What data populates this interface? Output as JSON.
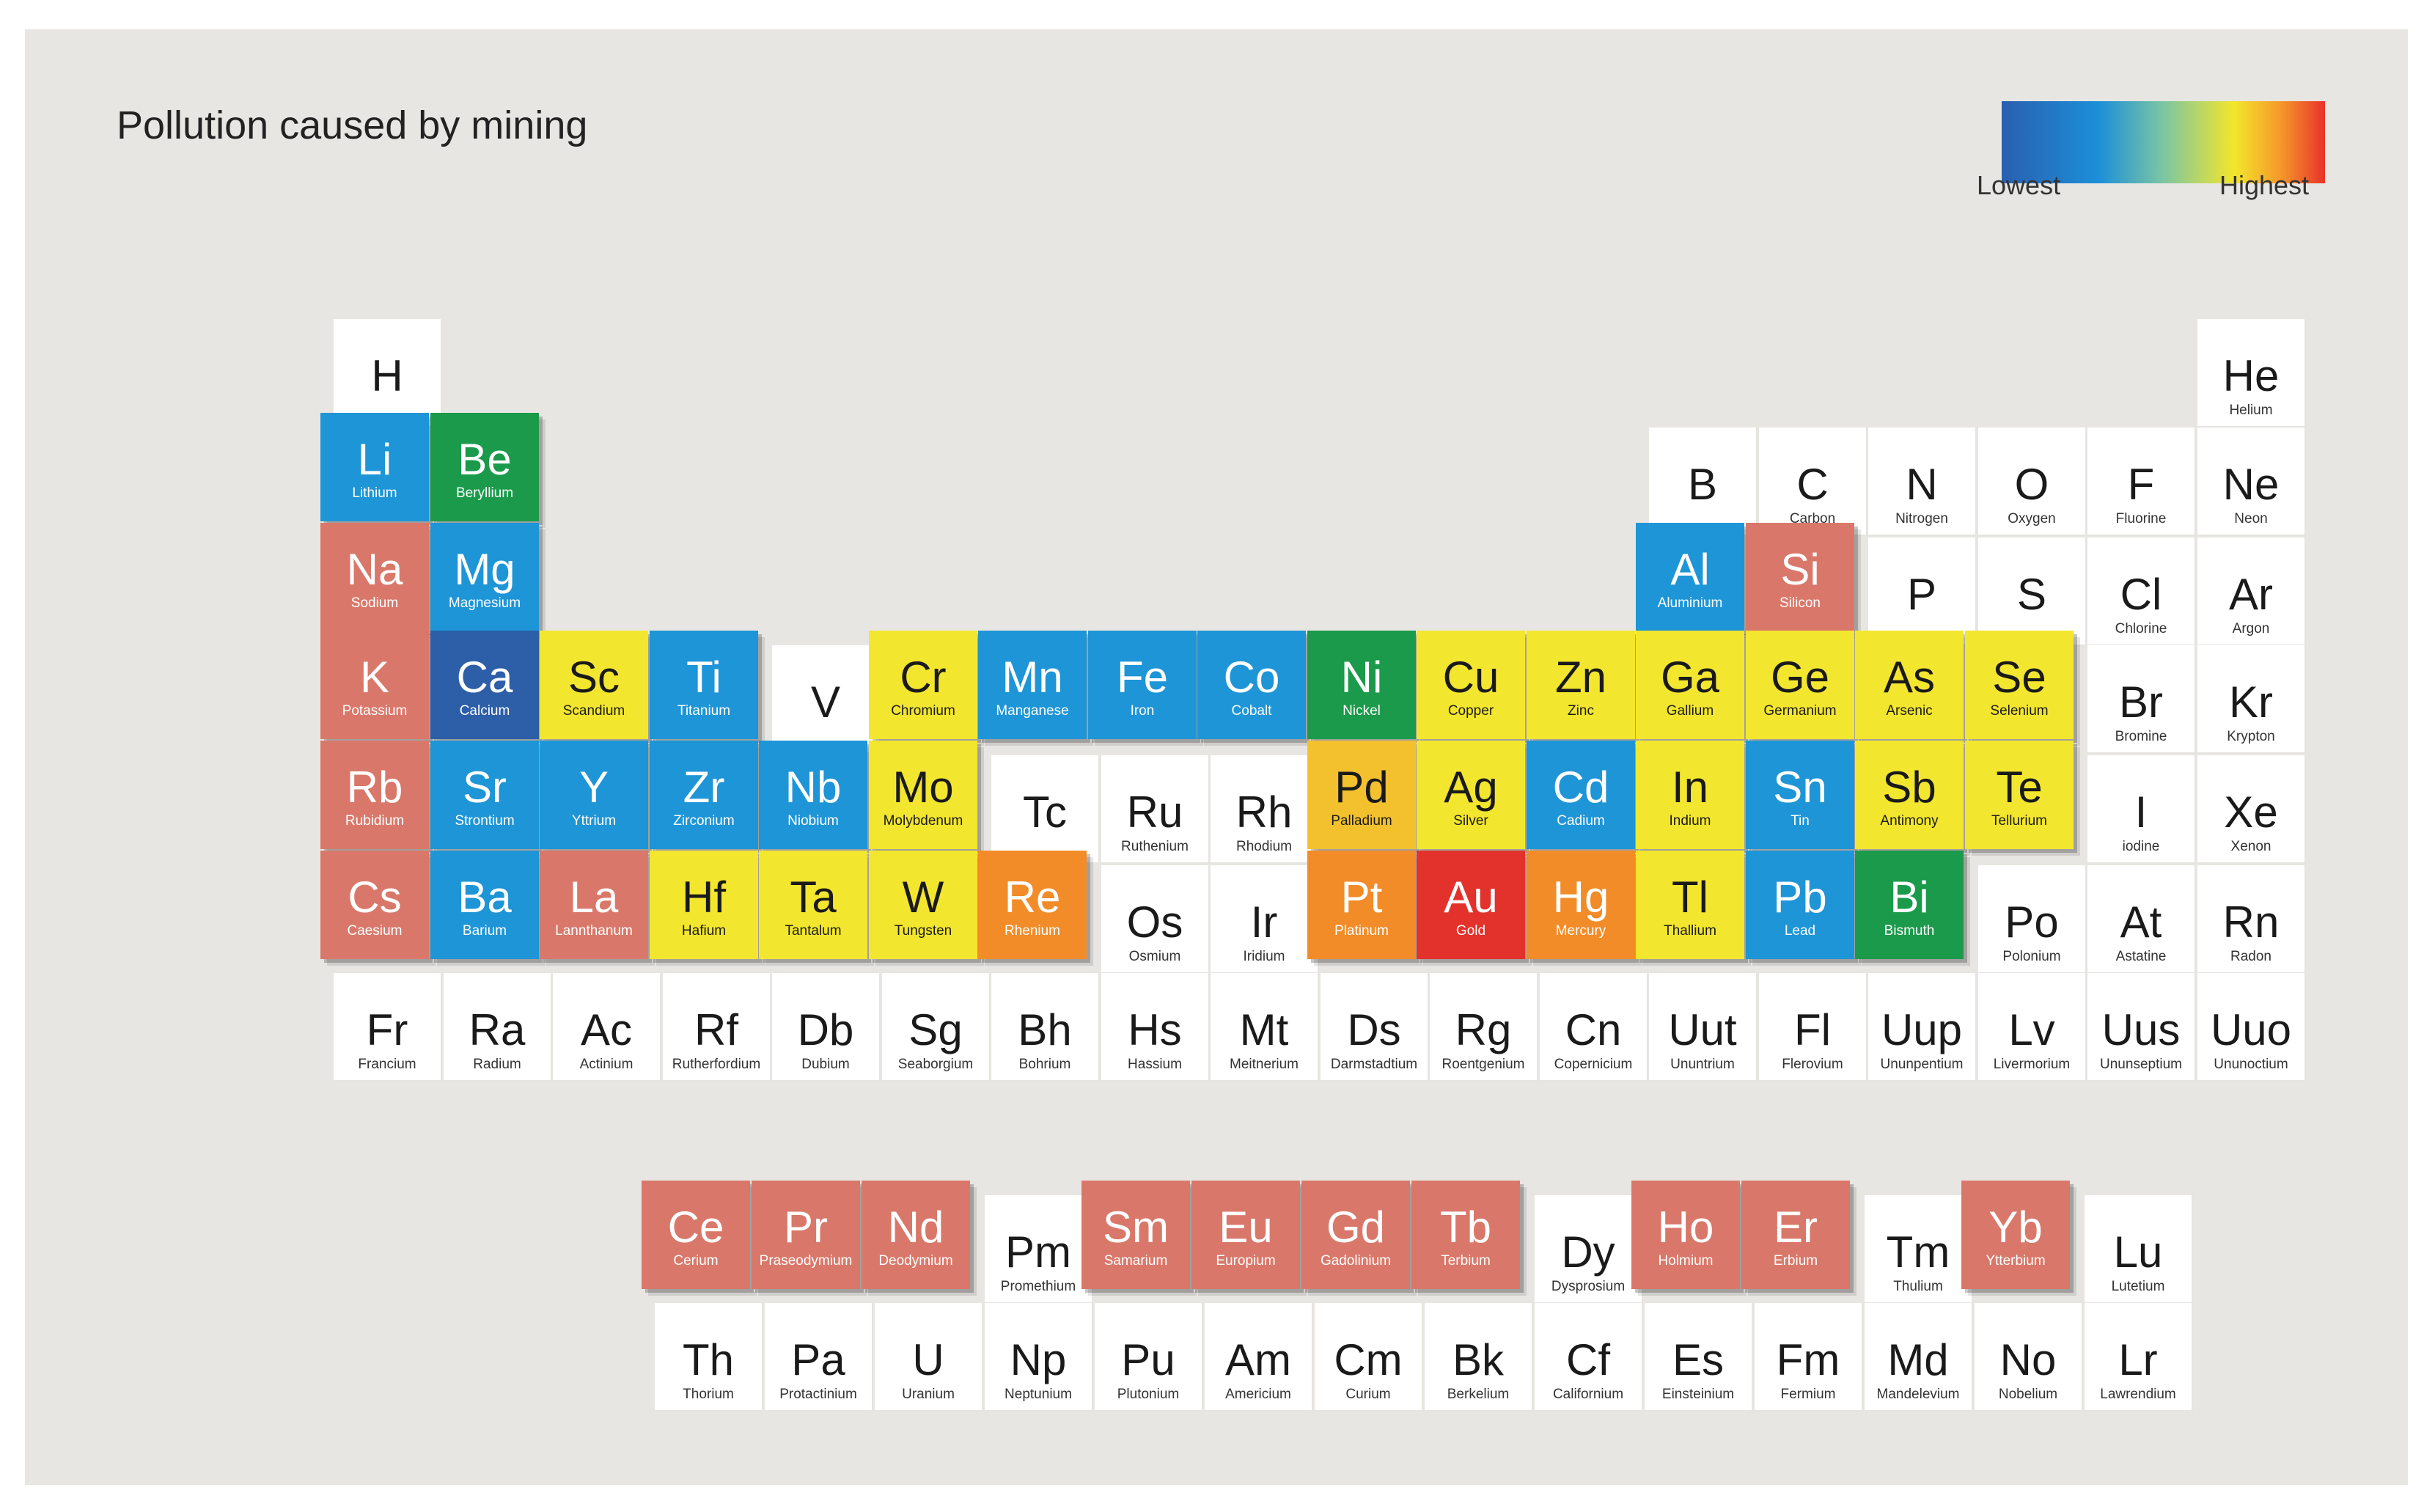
{
  "title": "Pollution caused by mining",
  "legend": {
    "low": "Lowest",
    "high": "Highest"
  },
  "colors": {
    "white": "#ffffff",
    "salmon": "#d9786a",
    "blue": "#1e95d6",
    "darkblue": "#2d5ea8",
    "green": "#1a9a4a",
    "yellow": "#f3e62e",
    "gold": "#f3c12e",
    "orange": "#f28c28",
    "red": "#e3312b"
  },
  "elements": [
    {
      "s": "H",
      "n": "",
      "r": 1,
      "c": 1,
      "p": "white"
    },
    {
      "s": "He",
      "n": "Helium",
      "r": 1,
      "c": 18,
      "p": "white"
    },
    {
      "s": "Li",
      "n": "Lithium",
      "r": 2,
      "c": 1,
      "p": "blue"
    },
    {
      "s": "Be",
      "n": "Beryllium",
      "r": 2,
      "c": 2,
      "p": "green"
    },
    {
      "s": "B",
      "n": "",
      "r": 2,
      "c": 13,
      "p": "white"
    },
    {
      "s": "C",
      "n": "Carbon",
      "r": 2,
      "c": 14,
      "p": "white"
    },
    {
      "s": "N",
      "n": "Nitrogen",
      "r": 2,
      "c": 15,
      "p": "white"
    },
    {
      "s": "O",
      "n": "Oxygen",
      "r": 2,
      "c": 16,
      "p": "white"
    },
    {
      "s": "F",
      "n": "Fluorine",
      "r": 2,
      "c": 17,
      "p": "white"
    },
    {
      "s": "Ne",
      "n": "Neon",
      "r": 2,
      "c": 18,
      "p": "white"
    },
    {
      "s": "Na",
      "n": "Sodium",
      "r": 3,
      "c": 1,
      "p": "salmon"
    },
    {
      "s": "Mg",
      "n": "Magnesium",
      "r": 3,
      "c": 2,
      "p": "blue"
    },
    {
      "s": "Al",
      "n": "Aluminium",
      "r": 3,
      "c": 13,
      "p": "blue"
    },
    {
      "s": "Si",
      "n": "Silicon",
      "r": 3,
      "c": 14,
      "p": "salmon"
    },
    {
      "s": "P",
      "n": "",
      "r": 3,
      "c": 15,
      "p": "white"
    },
    {
      "s": "S",
      "n": "",
      "r": 3,
      "c": 16,
      "p": "white"
    },
    {
      "s": "Cl",
      "n": "Chlorine",
      "r": 3,
      "c": 17,
      "p": "white"
    },
    {
      "s": "Ar",
      "n": "Argon",
      "r": 3,
      "c": 18,
      "p": "white"
    },
    {
      "s": "K",
      "n": "Potassium",
      "r": 4,
      "c": 1,
      "p": "salmon"
    },
    {
      "s": "Ca",
      "n": "Calcium",
      "r": 4,
      "c": 2,
      "p": "darkblue"
    },
    {
      "s": "Sc",
      "n": "Scandium",
      "r": 4,
      "c": 3,
      "p": "yellow"
    },
    {
      "s": "Ti",
      "n": "Titanium",
      "r": 4,
      "c": 4,
      "p": "blue"
    },
    {
      "s": "V",
      "n": "",
      "r": 4,
      "c": 5,
      "p": "white"
    },
    {
      "s": "Cr",
      "n": "Chromium",
      "r": 4,
      "c": 6,
      "p": "yellow"
    },
    {
      "s": "Mn",
      "n": "Manganese",
      "r": 4,
      "c": 7,
      "p": "blue"
    },
    {
      "s": "Fe",
      "n": "Iron",
      "r": 4,
      "c": 8,
      "p": "blue"
    },
    {
      "s": "Co",
      "n": "Cobalt",
      "r": 4,
      "c": 9,
      "p": "blue"
    },
    {
      "s": "Ni",
      "n": "Nickel",
      "r": 4,
      "c": 10,
      "p": "green"
    },
    {
      "s": "Cu",
      "n": "Copper",
      "r": 4,
      "c": 11,
      "p": "yellow"
    },
    {
      "s": "Zn",
      "n": "Zinc",
      "r": 4,
      "c": 12,
      "p": "yellow"
    },
    {
      "s": "Ga",
      "n": "Gallium",
      "r": 4,
      "c": 13,
      "p": "yellow"
    },
    {
      "s": "Ge",
      "n": "Germanium",
      "r": 4,
      "c": 14,
      "p": "yellow"
    },
    {
      "s": "As",
      "n": "Arsenic",
      "r": 4,
      "c": 15,
      "p": "yellow"
    },
    {
      "s": "Se",
      "n": "Selenium",
      "r": 4,
      "c": 16,
      "p": "yellow"
    },
    {
      "s": "Br",
      "n": "Bromine",
      "r": 4,
      "c": 17,
      "p": "white"
    },
    {
      "s": "Kr",
      "n": "Krypton",
      "r": 4,
      "c": 18,
      "p": "white"
    },
    {
      "s": "Rb",
      "n": "Rubidium",
      "r": 5,
      "c": 1,
      "p": "salmon"
    },
    {
      "s": "Sr",
      "n": "Strontium",
      "r": 5,
      "c": 2,
      "p": "blue"
    },
    {
      "s": "Y",
      "n": "Yttrium",
      "r": 5,
      "c": 3,
      "p": "blue"
    },
    {
      "s": "Zr",
      "n": "Zirconium",
      "r": 5,
      "c": 4,
      "p": "blue"
    },
    {
      "s": "Nb",
      "n": "Niobium",
      "r": 5,
      "c": 5,
      "p": "blue"
    },
    {
      "s": "Mo",
      "n": "Molybdenum",
      "r": 5,
      "c": 6,
      "p": "yellow"
    },
    {
      "s": "Tc",
      "n": "",
      "r": 5,
      "c": 7,
      "p": "white"
    },
    {
      "s": "Ru",
      "n": "Ruthenium",
      "r": 5,
      "c": 8,
      "p": "white"
    },
    {
      "s": "Rh",
      "n": "Rhodium",
      "r": 5,
      "c": 9,
      "p": "white"
    },
    {
      "s": "Pd",
      "n": "Palladium",
      "r": 5,
      "c": 10,
      "p": "gold"
    },
    {
      "s": "Ag",
      "n": "Silver",
      "r": 5,
      "c": 11,
      "p": "yellow"
    },
    {
      "s": "Cd",
      "n": "Cadium",
      "r": 5,
      "c": 12,
      "p": "blue"
    },
    {
      "s": "In",
      "n": "Indium",
      "r": 5,
      "c": 13,
      "p": "yellow"
    },
    {
      "s": "Sn",
      "n": "Tin",
      "r": 5,
      "c": 14,
      "p": "blue"
    },
    {
      "s": "Sb",
      "n": "Antimony",
      "r": 5,
      "c": 15,
      "p": "yellow"
    },
    {
      "s": "Te",
      "n": "Tellurium",
      "r": 5,
      "c": 16,
      "p": "yellow"
    },
    {
      "s": "I",
      "n": "iodine",
      "r": 5,
      "c": 17,
      "p": "white"
    },
    {
      "s": "Xe",
      "n": "Xenon",
      "r": 5,
      "c": 18,
      "p": "white"
    },
    {
      "s": "Cs",
      "n": "Caesium",
      "r": 6,
      "c": 1,
      "p": "salmon"
    },
    {
      "s": "Ba",
      "n": "Barium",
      "r": 6,
      "c": 2,
      "p": "blue"
    },
    {
      "s": "La",
      "n": "Lannthanum",
      "r": 6,
      "c": 3,
      "p": "salmon"
    },
    {
      "s": "Hf",
      "n": "Hafium",
      "r": 6,
      "c": 4,
      "p": "yellow"
    },
    {
      "s": "Ta",
      "n": "Tantalum",
      "r": 6,
      "c": 5,
      "p": "yellow"
    },
    {
      "s": "W",
      "n": "Tungsten",
      "r": 6,
      "c": 6,
      "p": "yellow"
    },
    {
      "s": "Re",
      "n": "Rhenium",
      "r": 6,
      "c": 7,
      "p": "orange"
    },
    {
      "s": "Os",
      "n": "Osmium",
      "r": 6,
      "c": 8,
      "p": "white"
    },
    {
      "s": "Ir",
      "n": "Iridium",
      "r": 6,
      "c": 9,
      "p": "white"
    },
    {
      "s": "Pt",
      "n": "Platinum",
      "r": 6,
      "c": 10,
      "p": "orange"
    },
    {
      "s": "Au",
      "n": "Gold",
      "r": 6,
      "c": 11,
      "p": "red"
    },
    {
      "s": "Hg",
      "n": "Mercury",
      "r": 6,
      "c": 12,
      "p": "orange"
    },
    {
      "s": "Tl",
      "n": "Thallium",
      "r": 6,
      "c": 13,
      "p": "yellow"
    },
    {
      "s": "Pb",
      "n": "Lead",
      "r": 6,
      "c": 14,
      "p": "blue"
    },
    {
      "s": "Bi",
      "n": "Bismuth",
      "r": 6,
      "c": 15,
      "p": "green"
    },
    {
      "s": "Po",
      "n": "Polonium",
      "r": 6,
      "c": 16,
      "p": "white"
    },
    {
      "s": "At",
      "n": "Astatine",
      "r": 6,
      "c": 17,
      "p": "white"
    },
    {
      "s": "Rn",
      "n": "Radon",
      "r": 6,
      "c": 18,
      "p": "white"
    },
    {
      "s": "Fr",
      "n": "Francium",
      "r": 7,
      "c": 1,
      "p": "white"
    },
    {
      "s": "Ra",
      "n": "Radium",
      "r": 7,
      "c": 2,
      "p": "white"
    },
    {
      "s": "Ac",
      "n": "Actinium",
      "r": 7,
      "c": 3,
      "p": "white"
    },
    {
      "s": "Rf",
      "n": "Rutherfordium",
      "r": 7,
      "c": 4,
      "p": "white"
    },
    {
      "s": "Db",
      "n": "Dubium",
      "r": 7,
      "c": 5,
      "p": "white"
    },
    {
      "s": "Sg",
      "n": "Seaborgium",
      "r": 7,
      "c": 6,
      "p": "white"
    },
    {
      "s": "Bh",
      "n": "Bohrium",
      "r": 7,
      "c": 7,
      "p": "white"
    },
    {
      "s": "Hs",
      "n": "Hassium",
      "r": 7,
      "c": 8,
      "p": "white"
    },
    {
      "s": "Mt",
      "n": "Meitnerium",
      "r": 7,
      "c": 9,
      "p": "white"
    },
    {
      "s": "Ds",
      "n": "Darmstadtium",
      "r": 7,
      "c": 10,
      "p": "white"
    },
    {
      "s": "Rg",
      "n": "Roentgenium",
      "r": 7,
      "c": 11,
      "p": "white"
    },
    {
      "s": "Cn",
      "n": "Copernicium",
      "r": 7,
      "c": 12,
      "p": "white"
    },
    {
      "s": "Uut",
      "n": "Ununtrium",
      "r": 7,
      "c": 13,
      "p": "white"
    },
    {
      "s": "Fl",
      "n": "Flerovium",
      "r": 7,
      "c": 14,
      "p": "white"
    },
    {
      "s": "Uup",
      "n": "Ununpentium",
      "r": 7,
      "c": 15,
      "p": "white"
    },
    {
      "s": "Lv",
      "n": "Livermorium",
      "r": 7,
      "c": 16,
      "p": "white"
    },
    {
      "s": "Uus",
      "n": "Ununseptium",
      "r": 7,
      "c": 17,
      "p": "white"
    },
    {
      "s": "Uuo",
      "n": "Ununoctium",
      "r": 7,
      "c": 18,
      "p": "white"
    },
    {
      "s": "Ce",
      "n": "Cerium",
      "r": 9,
      "c": 4,
      "p": "salmon"
    },
    {
      "s": "Pr",
      "n": "Praseodymium",
      "r": 9,
      "c": 5,
      "p": "salmon"
    },
    {
      "s": "Nd",
      "n": "Deodymium",
      "r": 9,
      "c": 6,
      "p": "salmon"
    },
    {
      "s": "Pm",
      "n": "Promethium",
      "r": 9,
      "c": 7,
      "p": "white"
    },
    {
      "s": "Sm",
      "n": "Samarium",
      "r": 9,
      "c": 8,
      "p": "salmon"
    },
    {
      "s": "Eu",
      "n": "Europium",
      "r": 9,
      "c": 9,
      "p": "salmon"
    },
    {
      "s": "Gd",
      "n": "Gadolinium",
      "r": 9,
      "c": 10,
      "p": "salmon"
    },
    {
      "s": "Tb",
      "n": "Terbium",
      "r": 9,
      "c": 11,
      "p": "salmon"
    },
    {
      "s": "Dy",
      "n": "Dysprosium",
      "r": 9,
      "c": 12,
      "p": "white"
    },
    {
      "s": "Ho",
      "n": "Holmium",
      "r": 9,
      "c": 13,
      "p": "salmon"
    },
    {
      "s": "Er",
      "n": "Erbium",
      "r": 9,
      "c": 14,
      "p": "salmon"
    },
    {
      "s": "Tm",
      "n": "Thulium",
      "r": 9,
      "c": 15,
      "p": "white"
    },
    {
      "s": "Yb",
      "n": "Ytterbium",
      "r": 9,
      "c": 16,
      "p": "salmon"
    },
    {
      "s": "Lu",
      "n": "Lutetium",
      "r": 9,
      "c": 17,
      "p": "white"
    },
    {
      "s": "Th",
      "n": "Thorium",
      "r": 10,
      "c": 4,
      "p": "white"
    },
    {
      "s": "Pa",
      "n": "Protactinium",
      "r": 10,
      "c": 5,
      "p": "white"
    },
    {
      "s": "U",
      "n": "Uranium",
      "r": 10,
      "c": 6,
      "p": "white"
    },
    {
      "s": "Np",
      "n": "Neptunium",
      "r": 10,
      "c": 7,
      "p": "white"
    },
    {
      "s": "Pu",
      "n": "Plutonium",
      "r": 10,
      "c": 8,
      "p": "white"
    },
    {
      "s": "Am",
      "n": "Americium",
      "r": 10,
      "c": 9,
      "p": "white"
    },
    {
      "s": "Cm",
      "n": "Curium",
      "r": 10,
      "c": 10,
      "p": "white"
    },
    {
      "s": "Bk",
      "n": "Berkelium",
      "r": 10,
      "c": 11,
      "p": "white"
    },
    {
      "s": "Cf",
      "n": "Californium",
      "r": 10,
      "c": 12,
      "p": "white"
    },
    {
      "s": "Es",
      "n": "Einsteinium",
      "r": 10,
      "c": 13,
      "p": "white"
    },
    {
      "s": "Fm",
      "n": "Fermium",
      "r": 10,
      "c": 14,
      "p": "white"
    },
    {
      "s": "Md",
      "n": "Mandelevium",
      "r": 10,
      "c": 15,
      "p": "white"
    },
    {
      "s": "No",
      "n": "Nobelium",
      "r": 10,
      "c": 16,
      "p": "white"
    },
    {
      "s": "Lr",
      "n": "Lawrendium",
      "r": 10,
      "c": 17,
      "p": "white"
    }
  ]
}
